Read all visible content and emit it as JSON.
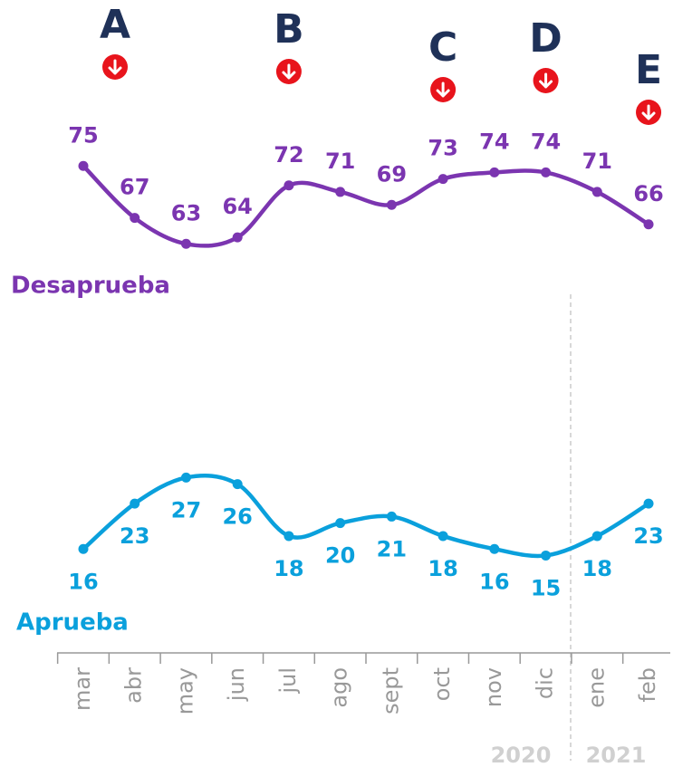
{
  "chart_data": {
    "type": "line",
    "categories": [
      "mar",
      "abr",
      "may",
      "jun",
      "jul",
      "ago",
      "sept",
      "oct",
      "nov",
      "dic",
      "ene",
      "feb"
    ],
    "series": [
      {
        "name": "Desaprueba",
        "color": "#7b35b0",
        "values": [
          75,
          67,
          63,
          64,
          72,
          71,
          69,
          73,
          74,
          74,
          71,
          66
        ]
      },
      {
        "name": "Aprueba",
        "color": "#0aa0dc",
        "values": [
          16,
          23,
          27,
          26,
          18,
          20,
          21,
          18,
          16,
          15,
          18,
          23
        ]
      }
    ],
    "ylim": [
      0,
      100
    ],
    "annotations": [
      {
        "text": "A",
        "x": "mar"
      },
      {
        "text": "B",
        "x": "jul"
      },
      {
        "text": "C",
        "x": "oct"
      },
      {
        "text": "D",
        "x": "dic"
      },
      {
        "text": "E",
        "x": "feb"
      }
    ],
    "year_labels": [
      "2020",
      "2021"
    ]
  }
}
